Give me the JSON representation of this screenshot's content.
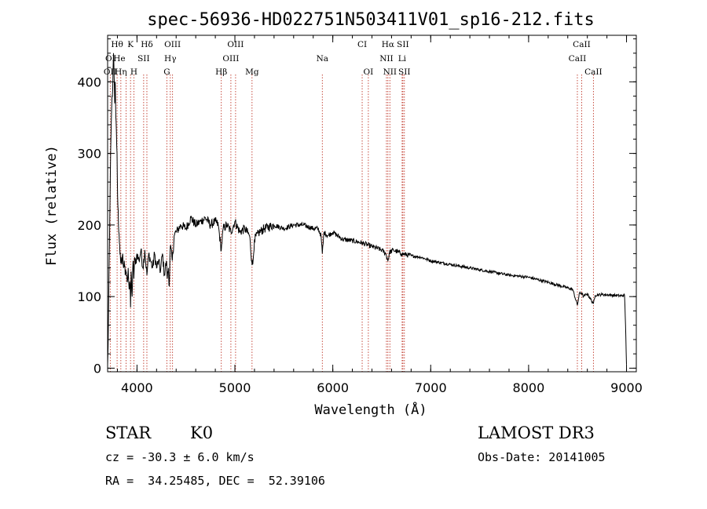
{
  "chart_data": {
    "type": "line",
    "title": "spec-56936-HD022751N503411V01_sp16-212.fits",
    "xlabel": "Wavelength (Å)",
    "ylabel": "Flux (relative)",
    "xlim": [
      3700,
      9100
    ],
    "ylim": [
      -5,
      465
    ],
    "x_ticks": [
      4000,
      5000,
      6000,
      7000,
      8000,
      9000
    ],
    "y_ticks": [
      0,
      100,
      200,
      300,
      400
    ],
    "x_minor_step": 200,
    "y_minor_step": 20,
    "series": [
      {
        "name": "flux",
        "x": [
          3700,
          3705,
          3710,
          3716,
          3724,
          3735,
          3745,
          3752,
          3760,
          3766,
          3772,
          3778,
          3784,
          3790,
          3796,
          3802,
          3808,
          3814,
          3820,
          3826,
          3832,
          3838,
          3846,
          3854,
          3862,
          3870,
          3880,
          3890,
          3900,
          3910,
          3920,
          3930,
          3934,
          3940,
          3950,
          3960,
          3968,
          3975,
          3985,
          4000,
          4020,
          4040,
          4060,
          4080,
          4101,
          4120,
          4140,
          4160,
          4180,
          4200,
          4220,
          4240,
          4260,
          4280,
          4300,
          4310,
          4320,
          4330,
          4340,
          4360,
          4380,
          4400,
          4450,
          4500,
          4550,
          4600,
          4650,
          4700,
          4750,
          4800,
          4830,
          4861,
          4880,
          4920,
          4960,
          5000,
          5050,
          5100,
          5150,
          5172,
          5183,
          5200,
          5250,
          5300,
          5400,
          5500,
          5600,
          5700,
          5800,
          5850,
          5880,
          5893,
          5910,
          5950,
          6000,
          6100,
          6200,
          6300,
          6400,
          6500,
          6540,
          6563,
          6580,
          6620,
          6700,
          6800,
          6900,
          7000,
          7200,
          7400,
          7600,
          7800,
          8000,
          8200,
          8400,
          8450,
          8498,
          8520,
          8542,
          8560,
          8600,
          8662,
          8680,
          8750,
          8850,
          8950,
          8980,
          8990,
          9000
        ],
        "y": [
          5,
          30,
          80,
          150,
          230,
          330,
          380,
          390,
          440,
          410,
          370,
          400,
          350,
          330,
          300,
          240,
          220,
          190,
          175,
          160,
          150,
          155,
          145,
          160,
          140,
          150,
          130,
          135,
          120,
          140,
          110,
          115,
          85,
          135,
          100,
          150,
          125,
          155,
          145,
          160,
          150,
          165,
          140,
          165,
          130,
          160,
          150,
          140,
          160,
          140,
          150,
          135,
          160,
          130,
          150,
          125,
          140,
          115,
          170,
          150,
          185,
          190,
          200,
          195,
          210,
          200,
          205,
          210,
          200,
          205,
          200,
          165,
          195,
          200,
          190,
          205,
          190,
          195,
          185,
          150,
          145,
          180,
          190,
          195,
          200,
          195,
          200,
          200,
          195,
          195,
          185,
          160,
          190,
          185,
          190,
          180,
          178,
          175,
          170,
          165,
          160,
          150,
          162,
          165,
          160,
          157,
          155,
          150,
          145,
          140,
          135,
          130,
          127,
          120,
          112,
          110,
          88,
          105,
          105,
          100,
          104,
          90,
          102,
          103,
          102,
          101,
          102,
          60,
          5
        ]
      }
    ],
    "line_markers": [
      {
        "label": "Hθ",
        "wavelength": 3797,
        "row": 0
      },
      {
        "label": "K",
        "wavelength": 3934,
        "row": 0
      },
      {
        "label": "Hδ",
        "wavelength": 4101,
        "row": 0
      },
      {
        "label": "OIII",
        "wavelength": 4363,
        "row": 0
      },
      {
        "label": "OIII",
        "wavelength": 5007,
        "row": 0
      },
      {
        "label": "CI",
        "wavelength": 6300,
        "row": 0
      },
      {
        "label": "Hα",
        "wavelength": 6563,
        "row": 0
      },
      {
        "label": "SII",
        "wavelength": 6716,
        "row": 0
      },
      {
        "label": "CaII",
        "wavelength": 8542,
        "row": 0
      },
      {
        "label": "OI",
        "wavelength": 3727,
        "row": 1
      },
      {
        "label": "He",
        "wavelength": 3820,
        "row": 1
      },
      {
        "label": "SII",
        "wavelength": 4068,
        "row": 1
      },
      {
        "label": "Hγ",
        "wavelength": 4340,
        "row": 1
      },
      {
        "label": "OIII",
        "wavelength": 4959,
        "row": 1
      },
      {
        "label": "Na",
        "wavelength": 5893,
        "row": 1
      },
      {
        "label": "NII",
        "wavelength": 6548,
        "row": 1
      },
      {
        "label": "Li",
        "wavelength": 6708,
        "row": 1
      },
      {
        "label": "CaII",
        "wavelength": 8498,
        "row": 1
      },
      {
        "label": "OII",
        "wavelength": 3727,
        "row": 2
      },
      {
        "label": "Hη",
        "wavelength": 3835,
        "row": 2
      },
      {
        "label": "H",
        "wavelength": 3968,
        "row": 2
      },
      {
        "label": "G",
        "wavelength": 4305,
        "row": 2
      },
      {
        "label": "Hβ",
        "wavelength": 4861,
        "row": 2
      },
      {
        "label": "Mg",
        "wavelength": 5175,
        "row": 2
      },
      {
        "label": "OI",
        "wavelength": 6363,
        "row": 2
      },
      {
        "label": "NII",
        "wavelength": 6583,
        "row": 2
      },
      {
        "label": "SII",
        "wavelength": 6731,
        "row": 2
      },
      {
        "label": "CaII",
        "wavelength": 8662,
        "row": 2
      }
    ],
    "vline_wavelengths": [
      3727,
      3797,
      3835,
      3889,
      3934,
      3968,
      4068,
      4101,
      4305,
      4340,
      4363,
      4861,
      4959,
      5007,
      5175,
      5893,
      6300,
      6363,
      6548,
      6563,
      6583,
      6708,
      6716,
      6731,
      8498,
      8542,
      8662
    ],
    "colors": {
      "spectrum": "#000000",
      "marker_line": "#c0392b",
      "axes": "#000000"
    }
  },
  "info": {
    "object_type": "STAR",
    "subclass": "K0",
    "survey": "LAMOST DR3",
    "cz": "cz = -30.3 ± 6.0 km/s",
    "obs_date": "Obs-Date: 20141005",
    "coords": "RA =  34.25485, DEC =  52.39106"
  }
}
